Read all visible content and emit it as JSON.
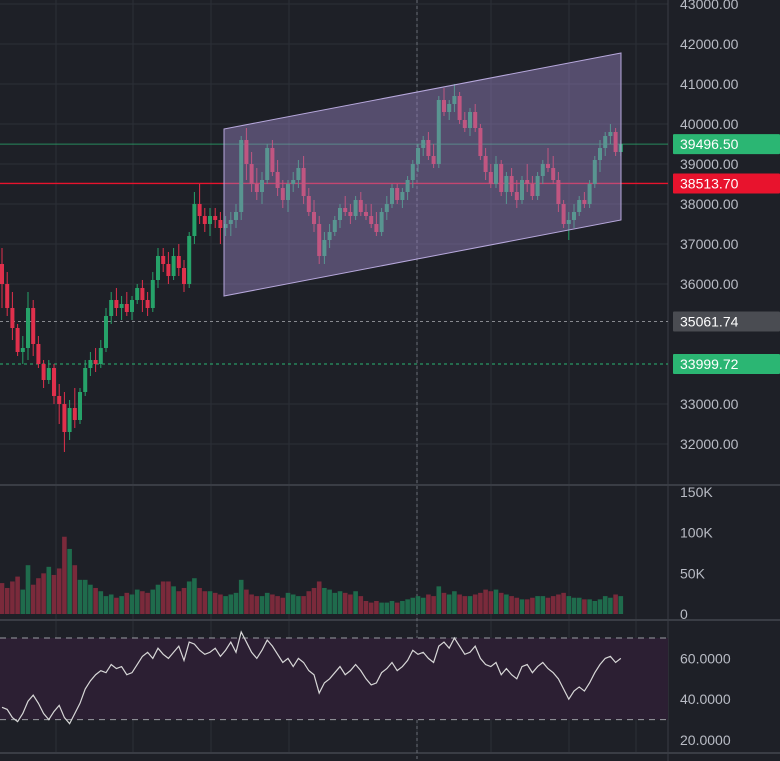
{
  "colors": {
    "background": "#1e2027",
    "grid": "#2c2f37",
    "up": "#26a269",
    "down": "#e0304c",
    "axis_text": "#b9bcc5",
    "channel_fill": "#9a86c4",
    "rsi_band": "#2c1f33",
    "rsi_line": "#d7d7d7",
    "price_tag_green": "#2bb673",
    "price_tag_red": "#e8132d",
    "price_tag_gray": "#4a4c52",
    "separator": "#3a3d45"
  },
  "price_axis": {
    "labels": [
      "43000.00",
      "42000.00",
      "41000.00",
      "40000.00",
      "39000.00",
      "38000.00",
      "37000.00",
      "36000.00",
      "33000.00",
      "32000.00"
    ]
  },
  "volume_axis": {
    "labels": [
      "150K",
      "100K",
      "50K",
      "0"
    ]
  },
  "rsi_axis": {
    "labels": [
      "60.0000",
      "40.0000",
      "20.0000"
    ]
  },
  "price_tags": {
    "current": "39496.50",
    "red_line": "38513.70",
    "gray_line": "35061.74",
    "green_line": "33999.72"
  },
  "chart_data": [
    {
      "type": "candlestick",
      "pane": "price",
      "ylim": [
        31100,
        43000
      ],
      "candles": [
        [
          36500,
          36900,
          35400,
          36000
        ],
        [
          36000,
          36300,
          35200,
          35400
        ],
        [
          35400,
          35800,
          34600,
          34900
        ],
        [
          34900,
          35000,
          34200,
          34300
        ],
        [
          34300,
          34700,
          34000,
          34400
        ],
        [
          34400,
          35800,
          34100,
          35400
        ],
        [
          35400,
          35600,
          34200,
          34500
        ],
        [
          34500,
          34700,
          33900,
          34000
        ],
        [
          34000,
          34100,
          33400,
          33600
        ],
        [
          33600,
          34100,
          33500,
          33900
        ],
        [
          33900,
          34000,
          33000,
          33200
        ],
        [
          33200,
          33500,
          32500,
          33000
        ],
        [
          33000,
          33300,
          31800,
          32300
        ],
        [
          32300,
          33100,
          32100,
          32900
        ],
        [
          32900,
          33400,
          32400,
          32600
        ],
        [
          32600,
          33400,
          32500,
          33300
        ],
        [
          33300,
          34100,
          33200,
          33900
        ],
        [
          33900,
          34300,
          33700,
          34100
        ],
        [
          34100,
          34400,
          33800,
          34000
        ],
        [
          34000,
          34600,
          33900,
          34400
        ],
        [
          34400,
          35400,
          34300,
          35200
        ],
        [
          35200,
          35800,
          35000,
          35600
        ],
        [
          35600,
          35900,
          35200,
          35400
        ],
        [
          35400,
          35700,
          35100,
          35500
        ],
        [
          35500,
          35800,
          35200,
          35300
        ],
        [
          35300,
          35700,
          35100,
          35600
        ],
        [
          35600,
          36000,
          35500,
          35900
        ],
        [
          35900,
          36100,
          35300,
          35600
        ],
        [
          35600,
          35800,
          35200,
          35400
        ],
        [
          35400,
          36300,
          35300,
          36100
        ],
        [
          36100,
          36900,
          35900,
          36700
        ],
        [
          36700,
          36900,
          36300,
          36500
        ],
        [
          36500,
          36800,
          36000,
          36200
        ],
        [
          36200,
          36900,
          36100,
          36700
        ],
        [
          36700,
          37000,
          36200,
          36400
        ],
        [
          36400,
          36600,
          35800,
          36000
        ],
        [
          36000,
          37300,
          35900,
          37200
        ],
        [
          37200,
          38300,
          37000,
          38000
        ],
        [
          38000,
          38500,
          37500,
          37700
        ],
        [
          37700,
          37900,
          37300,
          37500
        ],
        [
          37500,
          37900,
          37200,
          37700
        ],
        [
          37700,
          37900,
          37400,
          37600
        ],
        [
          37600,
          37800,
          37000,
          37400
        ],
        [
          37400,
          37700,
          37200,
          37500
        ],
        [
          37500,
          37800,
          37200,
          37600
        ],
        [
          37600,
          38000,
          37400,
          37800
        ],
        [
          37800,
          39700,
          37600,
          39600
        ],
        [
          39600,
          39900,
          38600,
          39000
        ],
        [
          39000,
          39300,
          38300,
          38500
        ],
        [
          38500,
          38900,
          38100,
          38300
        ],
        [
          38300,
          38800,
          38000,
          38600
        ],
        [
          38600,
          39500,
          38500,
          39400
        ],
        [
          39400,
          39600,
          38700,
          38800
        ],
        [
          38800,
          39100,
          38200,
          38400
        ],
        [
          38400,
          38600,
          37900,
          38100
        ],
        [
          38100,
          38600,
          37800,
          38500
        ],
        [
          38500,
          38800,
          38300,
          38600
        ],
        [
          38600,
          39100,
          38400,
          38900
        ],
        [
          38900,
          39200,
          38000,
          38200
        ],
        [
          38200,
          38400,
          37700,
          37800
        ],
        [
          37800,
          38100,
          37300,
          37500
        ],
        [
          37500,
          37700,
          36500,
          36700
        ],
        [
          36700,
          37300,
          36500,
          37100
        ],
        [
          37100,
          37500,
          36900,
          37300
        ],
        [
          37300,
          37700,
          37200,
          37600
        ],
        [
          37600,
          38000,
          37400,
          37900
        ],
        [
          37900,
          38200,
          37700,
          37800
        ],
        [
          37800,
          38000,
          37500,
          37700
        ],
        [
          37700,
          38200,
          37600,
          38100
        ],
        [
          38100,
          38300,
          37700,
          37800
        ],
        [
          37800,
          38000,
          37600,
          37700
        ],
        [
          37700,
          38000,
          37400,
          37500
        ],
        [
          37500,
          37800,
          37200,
          37300
        ],
        [
          37300,
          37900,
          37200,
          37800
        ],
        [
          37800,
          38200,
          37600,
          38000
        ],
        [
          38000,
          38500,
          37900,
          38400
        ],
        [
          38400,
          38500,
          38000,
          38100
        ],
        [
          38100,
          38400,
          37900,
          38300
        ],
        [
          38300,
          38700,
          38100,
          38600
        ],
        [
          38600,
          39100,
          38400,
          39000
        ],
        [
          39000,
          39500,
          38800,
          39400
        ],
        [
          39400,
          39700,
          39200,
          39600
        ],
        [
          39600,
          39800,
          39100,
          39200
        ],
        [
          39200,
          39500,
          38900,
          39000
        ],
        [
          39000,
          40700,
          38900,
          40600
        ],
        [
          40600,
          40900,
          40200,
          40300
        ],
        [
          40300,
          40600,
          40100,
          40500
        ],
        [
          40500,
          41000,
          40300,
          40700
        ],
        [
          40700,
          40800,
          40000,
          40100
        ],
        [
          40100,
          40300,
          39800,
          39900
        ],
        [
          39900,
          40400,
          39700,
          40300
        ],
        [
          40300,
          40500,
          39800,
          39900
        ],
        [
          39900,
          40000,
          39100,
          39200
        ],
        [
          39200,
          39400,
          38600,
          38800
        ],
        [
          38800,
          39000,
          38400,
          38500
        ],
        [
          38500,
          39200,
          38400,
          39000
        ],
        [
          39000,
          39100,
          38200,
          38300
        ],
        [
          38300,
          38800,
          38000,
          38700
        ],
        [
          38700,
          38900,
          38200,
          38300
        ],
        [
          38300,
          38600,
          37900,
          38100
        ],
        [
          38100,
          38700,
          38000,
          38600
        ],
        [
          38600,
          39000,
          38300,
          38500
        ],
        [
          38500,
          38700,
          38100,
          38200
        ],
        [
          38200,
          38800,
          38100,
          38700
        ],
        [
          38700,
          39100,
          38500,
          39000
        ],
        [
          39000,
          39400,
          38800,
          38900
        ],
        [
          38900,
          39200,
          38500,
          38600
        ],
        [
          38600,
          38800,
          37800,
          38000
        ],
        [
          38000,
          38100,
          37400,
          37500
        ],
        [
          37500,
          37800,
          37100,
          37600
        ],
        [
          37600,
          38000,
          37400,
          37800
        ],
        [
          37800,
          38200,
          37700,
          38100
        ],
        [
          38100,
          38300,
          37900,
          38000
        ],
        [
          38000,
          38600,
          37900,
          38500
        ],
        [
          38500,
          39200,
          38400,
          39100
        ],
        [
          39100,
          39600,
          38800,
          39400
        ],
        [
          39400,
          39800,
          39200,
          39700
        ],
        [
          39700,
          40000,
          39500,
          39800
        ],
        [
          39800,
          39900,
          39200,
          39300
        ],
        [
          39300,
          39600,
          39200,
          39500
        ]
      ]
    },
    {
      "type": "bar",
      "pane": "volume",
      "ylim": [
        0,
        150000
      ],
      "values": [
        38000,
        32000,
        40000,
        46000,
        30000,
        60000,
        36000,
        44000,
        50000,
        58000,
        48000,
        56000,
        95000,
        80000,
        60000,
        42000,
        42000,
        36000,
        32000,
        28000,
        22000,
        24000,
        20000,
        22000,
        26000,
        24000,
        30000,
        28000,
        26000,
        30000,
        36000,
        40000,
        40000,
        34000,
        28000,
        32000,
        40000,
        44000,
        32000,
        28000,
        28000,
        26000,
        24000,
        22000,
        24000,
        26000,
        42000,
        30000,
        24000,
        22000,
        22000,
        26000,
        24000,
        22000,
        20000,
        26000,
        24000,
        22000,
        22000,
        28000,
        32000,
        40000,
        32000,
        30000,
        26000,
        28000,
        26000,
        24000,
        28000,
        22000,
        16000,
        14000,
        16000,
        14000,
        14000,
        16000,
        14000,
        16000,
        18000,
        20000,
        22000,
        20000,
        24000,
        22000,
        34000,
        26000,
        24000,
        28000,
        24000,
        22000,
        22000,
        24000,
        26000,
        30000,
        28000,
        30000,
        26000,
        24000,
        22000,
        20000,
        18000,
        18000,
        20000,
        22000,
        22000,
        20000,
        22000,
        24000,
        26000,
        22000,
        20000,
        20000,
        18000,
        18000,
        16000,
        18000,
        22000,
        20000,
        24000,
        22000
      ]
    },
    {
      "type": "line",
      "pane": "rsi",
      "ylim": [
        16,
        76
      ],
      "guides": [
        30,
        70
      ],
      "values": [
        36,
        35,
        31,
        29,
        33,
        39,
        42,
        38,
        33,
        30,
        34,
        37,
        31,
        28,
        33,
        38,
        45,
        49,
        52,
        54,
        53,
        57,
        55,
        56,
        52,
        53,
        57,
        61,
        63,
        60,
        65,
        62,
        60,
        63,
        66,
        59,
        68,
        67,
        64,
        62,
        63,
        65,
        61,
        64,
        68,
        63,
        73,
        68,
        63,
        60,
        64,
        69,
        66,
        62,
        58,
        60,
        56,
        60,
        58,
        54,
        52,
        43,
        48,
        50,
        53,
        56,
        52,
        54,
        57,
        54,
        50,
        47,
        48,
        53,
        55,
        58,
        54,
        56,
        59,
        64,
        62,
        63,
        60,
        58,
        66,
        68,
        65,
        70,
        66,
        62,
        63,
        66,
        60,
        57,
        56,
        58,
        52,
        55,
        52,
        50,
        56,
        57,
        53,
        56,
        58,
        55,
        53,
        50,
        45,
        40,
        44,
        46,
        44,
        48,
        53,
        57,
        60,
        61,
        58,
        60
      ]
    }
  ]
}
